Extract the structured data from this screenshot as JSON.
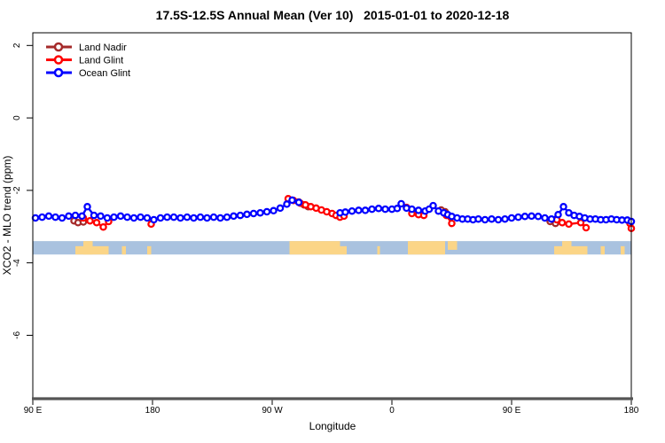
{
  "title": "17.5S-12.5S Annual Mean (Ver 10)   2015-01-01 to 2020-12-18",
  "axes": {
    "x": {
      "label": "Longitude",
      "range": [
        90,
        540
      ],
      "ticks": [
        {
          "value": 90,
          "label": "90 E"
        },
        {
          "value": 180,
          "label": "180"
        },
        {
          "value": 270,
          "label": "90 W"
        },
        {
          "value": 360,
          "label": "0"
        },
        {
          "value": 450,
          "label": "90 E"
        },
        {
          "value": 540,
          "label": "180"
        }
      ]
    },
    "y": {
      "label": "XCO2 - MLO trend (ppm)",
      "range": [
        -7.75,
        2.35
      ],
      "ticks": [
        {
          "value": 2,
          "label": "2"
        },
        {
          "value": 0,
          "label": "0"
        },
        {
          "value": -2,
          "label": "-2"
        },
        {
          "value": -4,
          "label": "-4"
        },
        {
          "value": -6,
          "label": "-6"
        }
      ]
    }
  },
  "legend": {
    "entries": [
      {
        "label": "Land Nadir",
        "color": "#A52A2A"
      },
      {
        "label": "Land Glint",
        "color": "#FF0000"
      },
      {
        "label": "Ocean Glint",
        "color": "#0000FF"
      }
    ]
  },
  "colors": {
    "frame": "#000000",
    "bottom_axis": "#555555",
    "ocean_band": "#A9C2DF",
    "land_patch": "#FBD587"
  },
  "chart_data": {
    "type": "scatter",
    "title": "17.5S-12.5S Annual Mean (Ver 10)   2015-01-01 to 2020-12-18",
    "xlabel": "Longitude",
    "ylabel": "XCO2 - MLO trend (ppm)",
    "xlim": [
      90,
      540
    ],
    "ylim": [
      -7.75,
      2.35
    ],
    "x_tick_values": [
      90,
      180,
      270,
      360,
      450,
      540
    ],
    "x_tick_labels": [
      "90 E",
      "180",
      "90 W",
      "0",
      "90 E",
      "180"
    ],
    "y_tick_values": [
      2,
      0,
      -2,
      -4,
      -6
    ],
    "grid": false,
    "legend_position": "top-left",
    "note": "x axis spans 450 degrees eastward from 90E; 90E-180 sector repeats at both ends; marker style open circles joined by lines; gaps where no retrievals",
    "series": [
      {
        "name": "Land Nadir",
        "color": "#A52A2A",
        "points": [
          [
            121,
            -2.84
          ],
          [
            124,
            -2.89
          ],
          [
            128,
            -2.87
          ],
          [
            290,
            -2.32
          ],
          [
            294,
            -2.4
          ],
          [
            297,
            -2.45
          ],
          [
            397,
            -2.54
          ],
          [
            400,
            -2.59
          ],
          [
            479,
            -2.86
          ],
          [
            483,
            -2.91
          ]
        ]
      },
      {
        "name": "Land Glint",
        "color": "#FF0000",
        "points": [
          [
            128,
            -2.76
          ],
          [
            133,
            -2.84
          ],
          [
            138,
            -2.89
          ],
          [
            143,
            -3.01
          ],
          [
            147,
            -2.86
          ],
          [
            179,
            -2.93
          ],
          [
            282,
            -2.23
          ],
          [
            286,
            -2.28
          ],
          [
            291,
            -2.35
          ],
          [
            295,
            -2.4
          ],
          [
            299,
            -2.45
          ],
          [
            303,
            -2.49
          ],
          [
            307,
            -2.54
          ],
          [
            311,
            -2.59
          ],
          [
            315,
            -2.64
          ],
          [
            318,
            -2.69
          ],
          [
            321,
            -2.74
          ],
          [
            324,
            -2.71
          ],
          [
            371,
            -2.47
          ],
          [
            375,
            -2.64
          ],
          [
            380,
            -2.67
          ],
          [
            384,
            -2.69
          ],
          [
            401,
            -2.69
          ],
          [
            405,
            -2.91
          ],
          [
            484,
            -2.81
          ],
          [
            488,
            -2.89
          ],
          [
            493,
            -2.93
          ],
          [
            502,
            -2.89
          ],
          [
            506,
            -3.03
          ],
          [
            539,
            -2.91
          ],
          [
            540,
            -3.05
          ]
        ]
      },
      {
        "name": "Ocean Glint",
        "color": "#0000FF",
        "points": [
          [
            92,
            -2.76
          ],
          [
            97,
            -2.74
          ],
          [
            102,
            -2.71
          ],
          [
            107,
            -2.74
          ],
          [
            112,
            -2.76
          ],
          [
            117,
            -2.71
          ],
          [
            122,
            -2.69
          ],
          [
            127,
            -2.71
          ],
          [
            131,
            -2.45
          ],
          [
            136,
            -2.69
          ],
          [
            141,
            -2.71
          ],
          [
            146,
            -2.76
          ],
          [
            151,
            -2.74
          ],
          [
            156,
            -2.71
          ],
          [
            161,
            -2.74
          ],
          [
            166,
            -2.76
          ],
          [
            171,
            -2.74
          ],
          [
            176,
            -2.76
          ],
          [
            181,
            -2.81
          ],
          [
            186,
            -2.76
          ],
          [
            191,
            -2.74
          ],
          [
            196,
            -2.74
          ],
          [
            201,
            -2.76
          ],
          [
            206,
            -2.74
          ],
          [
            211,
            -2.76
          ],
          [
            216,
            -2.74
          ],
          [
            221,
            -2.76
          ],
          [
            226,
            -2.74
          ],
          [
            231,
            -2.76
          ],
          [
            236,
            -2.74
          ],
          [
            241,
            -2.71
          ],
          [
            246,
            -2.69
          ],
          [
            251,
            -2.66
          ],
          [
            256,
            -2.64
          ],
          [
            261,
            -2.62
          ],
          [
            266,
            -2.59
          ],
          [
            271,
            -2.56
          ],
          [
            276,
            -2.49
          ],
          [
            281,
            -2.38
          ],
          [
            285,
            -2.27
          ],
          [
            290,
            -2.33
          ],
          [
            321,
            -2.62
          ],
          [
            325,
            -2.6
          ],
          [
            330,
            -2.57
          ],
          [
            335,
            -2.55
          ],
          [
            340,
            -2.55
          ],
          [
            345,
            -2.52
          ],
          [
            350,
            -2.5
          ],
          [
            355,
            -2.52
          ],
          [
            360,
            -2.52
          ],
          [
            364,
            -2.5
          ],
          [
            367,
            -2.37
          ],
          [
            371,
            -2.49
          ],
          [
            375,
            -2.52
          ],
          [
            380,
            -2.55
          ],
          [
            385,
            -2.57
          ],
          [
            388,
            -2.52
          ],
          [
            391,
            -2.42
          ],
          [
            395,
            -2.57
          ],
          [
            399,
            -2.62
          ],
          [
            402,
            -2.67
          ],
          [
            405,
            -2.72
          ],
          [
            409,
            -2.76
          ],
          [
            413,
            -2.79
          ],
          [
            417,
            -2.79
          ],
          [
            421,
            -2.81
          ],
          [
            425,
            -2.79
          ],
          [
            430,
            -2.81
          ],
          [
            435,
            -2.79
          ],
          [
            440,
            -2.81
          ],
          [
            445,
            -2.79
          ],
          [
            450,
            -2.76
          ],
          [
            455,
            -2.74
          ],
          [
            460,
            -2.72
          ],
          [
            465,
            -2.71
          ],
          [
            470,
            -2.72
          ],
          [
            475,
            -2.76
          ],
          [
            480,
            -2.79
          ],
          [
            485,
            -2.67
          ],
          [
            489,
            -2.45
          ],
          [
            493,
            -2.62
          ],
          [
            497,
            -2.69
          ],
          [
            501,
            -2.72
          ],
          [
            505,
            -2.76
          ],
          [
            509,
            -2.79
          ],
          [
            513,
            -2.79
          ],
          [
            517,
            -2.81
          ],
          [
            521,
            -2.81
          ],
          [
            525,
            -2.79
          ],
          [
            529,
            -2.81
          ],
          [
            533,
            -2.82
          ],
          [
            537,
            -2.82
          ],
          [
            540,
            -2.86
          ]
        ]
      }
    ],
    "map_strip": {
      "description": "latitude-band land/ocean strip",
      "top_ppm": -3.4,
      "bottom_ppm": -3.77,
      "ocean_color": "#A9C2DF",
      "land_color": "#FBD587",
      "land_patches": [
        {
          "from": 122,
          "to": 147,
          "part": "bottom"
        },
        {
          "from": 128,
          "to": 135,
          "part": "full"
        },
        {
          "from": 157,
          "to": 160,
          "part": "bottom"
        },
        {
          "from": 176,
          "to": 179,
          "part": "bottom"
        },
        {
          "from": 283,
          "to": 321,
          "part": "full"
        },
        {
          "from": 321,
          "to": 326,
          "part": "bottom"
        },
        {
          "from": 349,
          "to": 351,
          "part": "bottom"
        },
        {
          "from": 372,
          "to": 400,
          "part": "full"
        },
        {
          "from": 402,
          "to": 409,
          "part": "top"
        },
        {
          "from": 482,
          "to": 507,
          "part": "bottom"
        },
        {
          "from": 488,
          "to": 495,
          "part": "full"
        },
        {
          "from": 517,
          "to": 520,
          "part": "bottom"
        },
        {
          "from": 532,
          "to": 535,
          "part": "bottom"
        }
      ]
    }
  }
}
